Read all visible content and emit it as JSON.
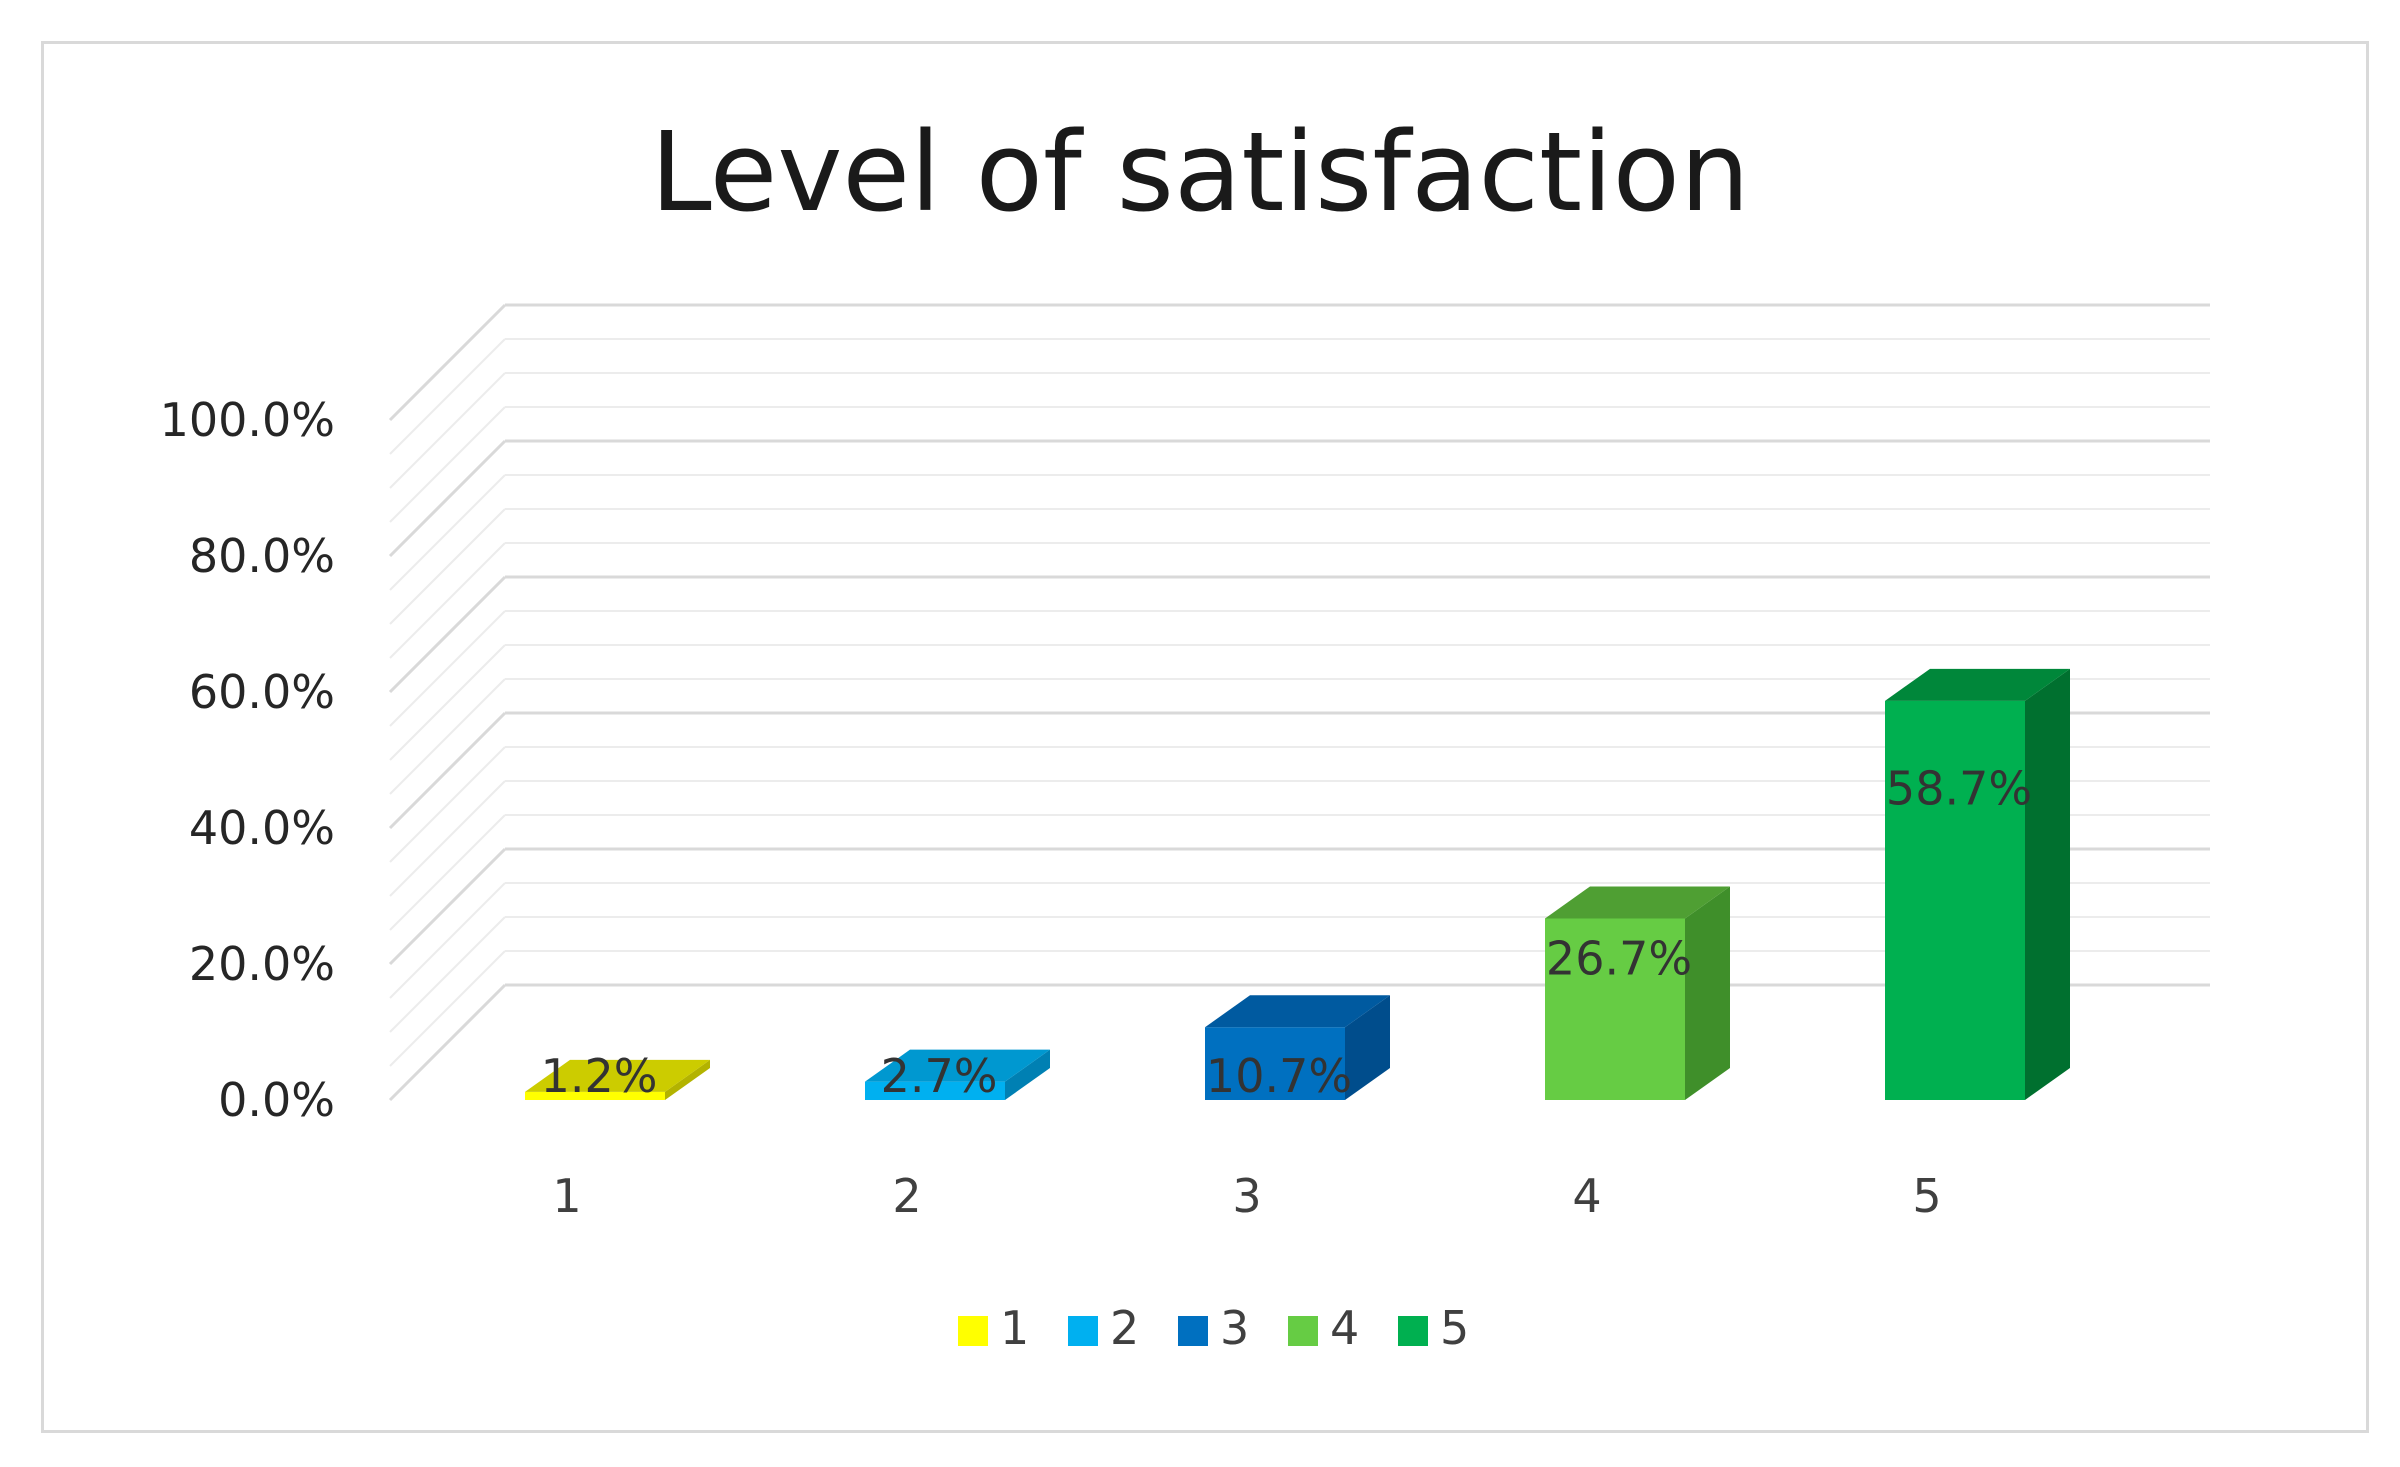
{
  "chart_data": {
    "type": "bar",
    "title": "Level of satisfaction",
    "categories": [
      "1",
      "2",
      "3",
      "4",
      "5"
    ],
    "values": [
      1.2,
      2.7,
      10.7,
      26.7,
      58.7
    ],
    "data_labels": [
      "1.2%",
      "2.7%",
      "10.7%",
      "26.7%",
      "58.7%"
    ],
    "yticks": [
      "0.0%",
      "20.0%",
      "40.0%",
      "60.0%",
      "80.0%",
      "100.0%"
    ],
    "ylim": [
      0,
      100
    ],
    "grid": true,
    "legend_position": "bottom",
    "legend": [
      "1",
      "2",
      "3",
      "4",
      "5"
    ],
    "colors": [
      "#ffff00",
      "#00b0f0",
      "#0070c0",
      "#66cc44",
      "#00b050"
    ],
    "side_colors": [
      "#b3b300",
      "#0080b3",
      "#004d8c",
      "#3f8f2a",
      "#00702f"
    ],
    "top_colors": [
      "#cccc00",
      "#0098d0",
      "#005aa0",
      "#4f9f33",
      "#00873a"
    ],
    "label_band_colors": [
      "#e6e600",
      "#00a0dc",
      "",
      "",
      ""
    ]
  }
}
